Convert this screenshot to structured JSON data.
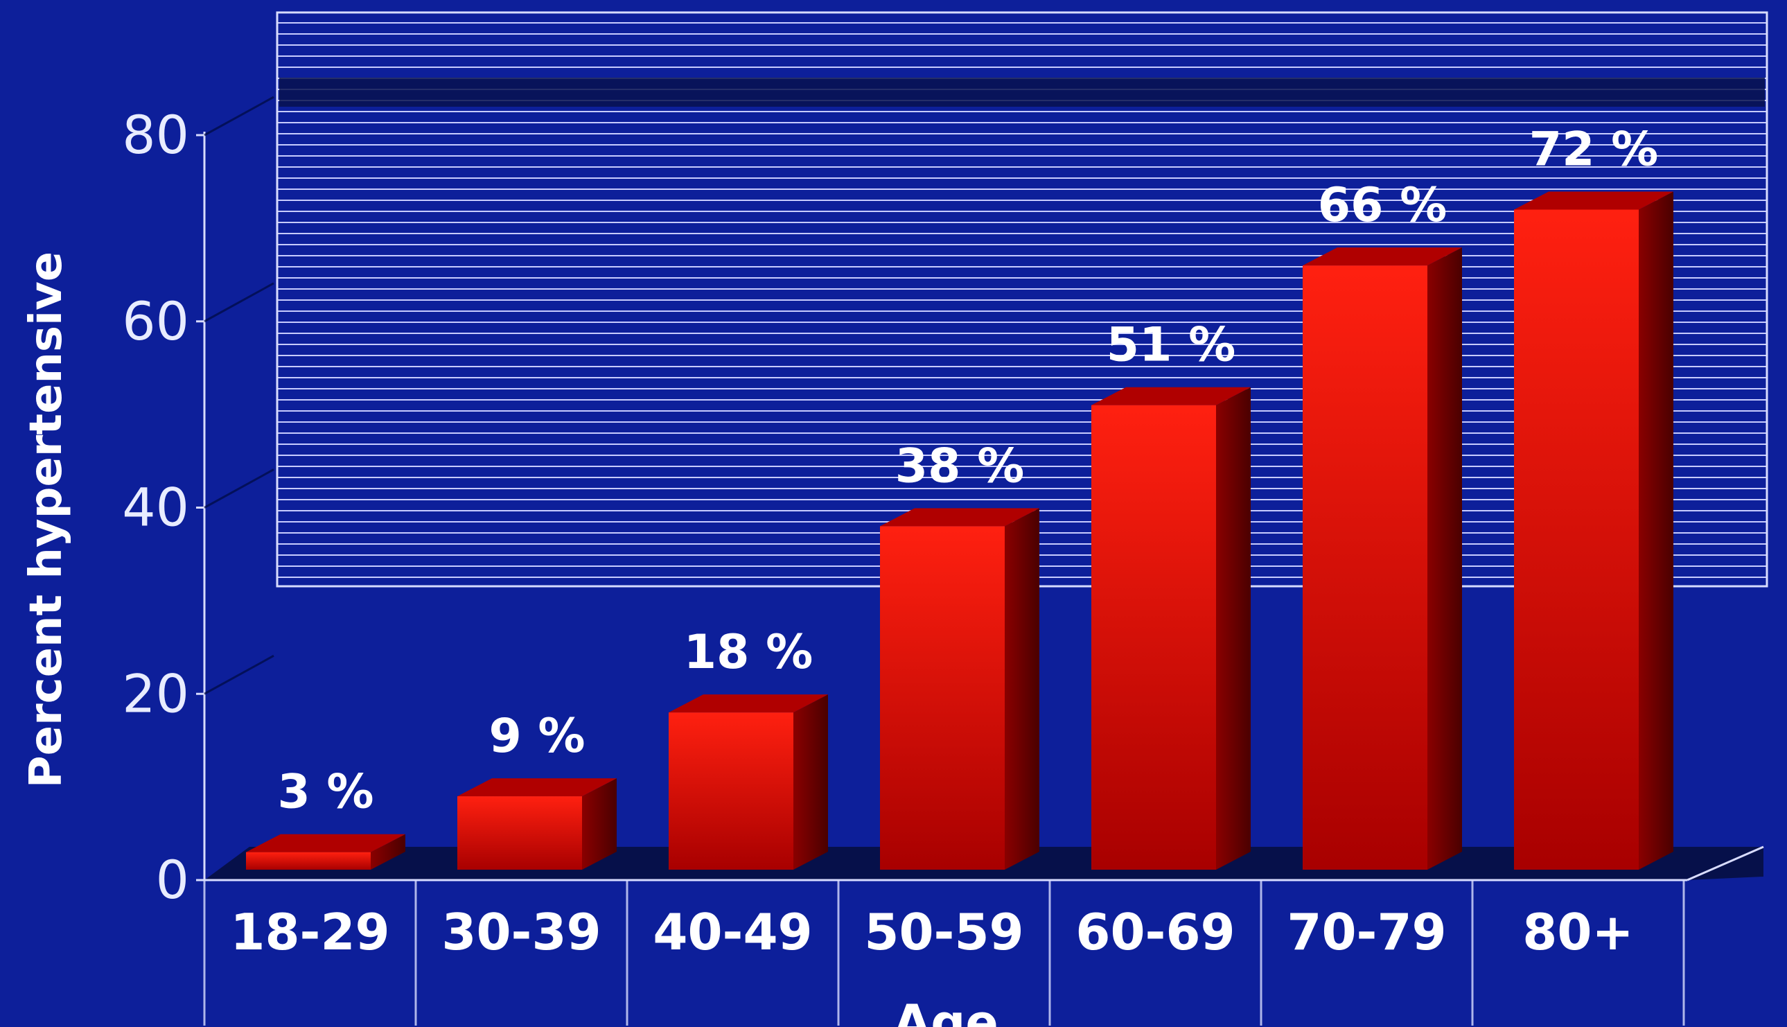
{
  "chart_data": {
    "type": "bar",
    "categories": [
      "18-29",
      "30-39",
      "40-49",
      "50-59",
      "60-69",
      "70-79",
      "80+"
    ],
    "values": [
      3,
      9,
      18,
      38,
      51,
      66,
      72
    ],
    "data_labels": [
      "3 %",
      "9 %",
      "18 %",
      "38 %",
      "51 %",
      "66 %",
      "72 %"
    ],
    "title": "",
    "ylabel": "Percent hypertensive",
    "xlabel": "Age",
    "ylim": [
      0,
      80
    ],
    "yticks": [
      0,
      20,
      40,
      60,
      80
    ],
    "grid": false,
    "legend": "none",
    "bar_color": "#ff1a10",
    "bar_dark_color": "#7a0000",
    "background_color": "#0d1f9a",
    "text_color": "#ffffff"
  }
}
